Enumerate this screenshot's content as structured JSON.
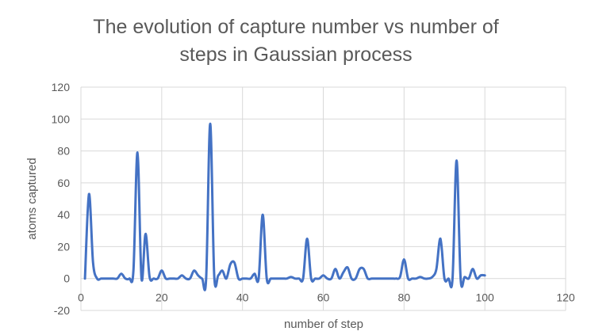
{
  "chart_data": {
    "type": "line",
    "title_lines": [
      "The evolution of capture number vs number of",
      "steps in Gaussian process"
    ],
    "xlabel": "number of step",
    "ylabel": "atoms captured",
    "xlim": [
      0,
      120
    ],
    "ylim": [
      -20,
      120
    ],
    "x_ticks": [
      "0",
      "20",
      "40",
      "60",
      "80",
      "100",
      "120"
    ],
    "y_ticks": [
      "120",
      "100",
      "80",
      "60",
      "40",
      "20",
      "0",
      "-20"
    ],
    "grid": "vertical-and-horizontal",
    "legend": "none",
    "series_color": "#4472c4",
    "series": [
      {
        "x": [
          1,
          2,
          3,
          4,
          5,
          6,
          7,
          8,
          9,
          10,
          11,
          12,
          13,
          14,
          15,
          16,
          17,
          18,
          19,
          20,
          21,
          22,
          23,
          24,
          25,
          26,
          27,
          28,
          29,
          30,
          31,
          32,
          33,
          34,
          35,
          36,
          37,
          38,
          39,
          40,
          41,
          42,
          43,
          44,
          45,
          46,
          47,
          48,
          49,
          50,
          51,
          52,
          53,
          54,
          55,
          56,
          57,
          58,
          59,
          60,
          61,
          62,
          63,
          64,
          65,
          66,
          67,
          68,
          69,
          70,
          71,
          72,
          73,
          74,
          75,
          76,
          77,
          78,
          79,
          80,
          81,
          82,
          83,
          84,
          85,
          86,
          87,
          88,
          89,
          90,
          91,
          92,
          93,
          94,
          95,
          96,
          97,
          98,
          99,
          100
        ],
        "values": [
          0,
          53,
          10,
          0,
          0,
          0,
          0,
          0,
          0,
          3,
          0,
          0,
          5,
          79,
          0,
          28,
          1,
          0,
          0,
          5,
          0,
          0,
          0,
          0,
          2,
          0,
          0,
          5,
          2,
          0,
          0,
          97,
          2,
          2,
          5,
          0,
          9,
          10,
          0,
          0,
          0,
          0,
          3,
          0,
          40,
          0,
          0,
          0,
          0,
          0,
          0,
          1,
          0,
          0,
          0,
          25,
          0,
          0,
          0,
          2,
          0,
          0,
          6,
          0,
          4,
          7,
          0,
          0,
          6,
          6,
          0,
          0,
          0,
          0,
          0,
          0,
          0,
          0,
          1,
          12,
          0,
          0,
          0,
          1,
          0,
          0,
          1,
          6,
          25,
          0,
          0,
          0,
          74,
          0,
          1,
          0,
          6,
          0,
          2,
          2
        ]
      }
    ]
  }
}
